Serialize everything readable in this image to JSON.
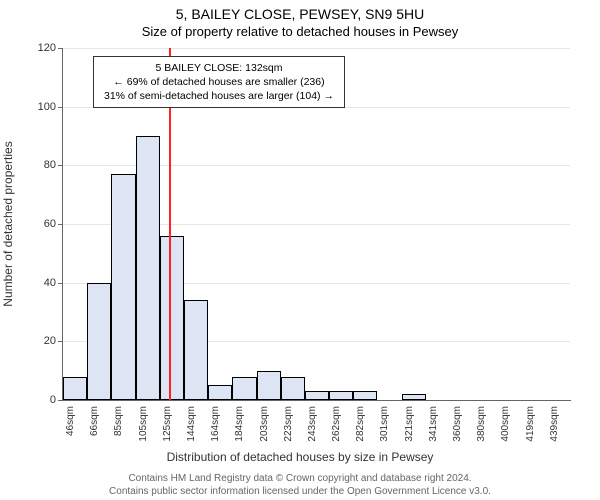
{
  "title": "5, BAILEY CLOSE, PEWSEY, SN9 5HU",
  "subtitle": "Size of property relative to detached houses in Pewsey",
  "xlabel": "Distribution of detached houses by size in Pewsey",
  "ylabel": "Number of detached properties",
  "footer1": "Contains HM Land Registry data © Crown copyright and database right 2024.",
  "footer2": "Contains public sector information licensed under the Open Government Licence v3.0.",
  "info_line1": "5 BAILEY CLOSE: 132sqm",
  "info_line2": "← 69% of detached houses are smaller (236)",
  "info_line3": "31% of semi-detached houses are larger (104) →",
  "chart": {
    "type": "histogram",
    "ylim": [
      0,
      120
    ],
    "ytick_step": 20,
    "background_color": "#ffffff",
    "grid_color": "#e6e6e6",
    "bar_fill": "#dde5f4",
    "bar_border": "#000000",
    "marker_color": "#ff2222",
    "marker_x_value": 132,
    "x_start": 46,
    "x_step": 19.65,
    "categories": [
      "46sqm",
      "66sqm",
      "85sqm",
      "105sqm",
      "125sqm",
      "144sqm",
      "164sqm",
      "184sqm",
      "203sqm",
      "223sqm",
      "243sqm",
      "262sqm",
      "282sqm",
      "301sqm",
      "321sqm",
      "341sqm",
      "360sqm",
      "380sqm",
      "400sqm",
      "419sqm",
      "439sqm"
    ],
    "values": [
      8,
      40,
      77,
      90,
      56,
      34,
      5,
      8,
      10,
      8,
      3,
      3,
      3,
      0,
      2,
      0,
      0,
      0,
      0,
      0,
      0
    ],
    "label_fontsize": 12,
    "tick_fontsize": 10
  }
}
